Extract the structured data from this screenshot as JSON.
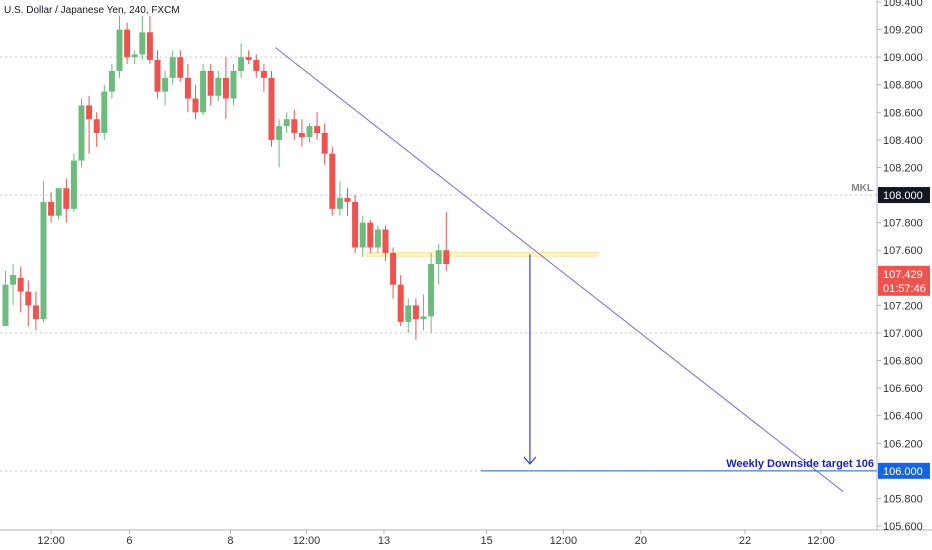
{
  "colors": {
    "up": "#6dbb7e",
    "down": "#ef5350",
    "trendline": "#6b6fd6",
    "arrow": "#3a3fbf",
    "target_line": "#1565e0",
    "grid": "#c8c8c8",
    "axis_text": "#333333",
    "current_price_bg": "#ef5350",
    "target_price_bg": "#1565e0",
    "mkl_bg": "#131722",
    "zone_fill": "#fff3c4"
  },
  "chart_data": {
    "type": "candlestick",
    "title": "U.S. Dollar / Japanese Yen, 240, FXCM",
    "y_axis": {
      "range": [
        105.6,
        109.4
      ],
      "ticks": [
        "109.400",
        "109.200",
        "109.000",
        "108.800",
        "108.600",
        "108.400",
        "108.200",
        "108.000",
        "107.800",
        "107.600",
        "107.400",
        "107.200",
        "107.000",
        "106.800",
        "106.600",
        "106.400",
        "106.200",
        "106.000",
        "105.800",
        "105.600"
      ],
      "gridlines_at": [
        109.0,
        108.0,
        107.0,
        106.0
      ]
    },
    "x_axis": {
      "ticks": [
        {
          "label": "12:00",
          "index": 6
        },
        {
          "label": "6",
          "index": 16.3
        },
        {
          "label": "8",
          "index": 29.6
        },
        {
          "label": "12:00",
          "index": 39.6
        },
        {
          "label": "13",
          "index": 49.8
        },
        {
          "label": "15",
          "index": 63.3
        },
        {
          "label": "12:00",
          "index": 73.4
        },
        {
          "label": "20",
          "index": 83.6
        },
        {
          "label": "22",
          "index": 97.3
        },
        {
          "label": "12:00",
          "index": 107.3
        }
      ]
    },
    "candles": [
      {
        "o": 107.05,
        "h": 107.45,
        "l": 107.05,
        "c": 107.35
      },
      {
        "o": 107.35,
        "h": 107.5,
        "l": 107.2,
        "c": 107.42
      },
      {
        "o": 107.4,
        "h": 107.48,
        "l": 107.15,
        "c": 107.3
      },
      {
        "o": 107.3,
        "h": 107.38,
        "l": 107.05,
        "c": 107.2
      },
      {
        "o": 107.2,
        "h": 107.3,
        "l": 107.02,
        "c": 107.1
      },
      {
        "o": 107.1,
        "h": 108.1,
        "l": 107.08,
        "c": 107.95
      },
      {
        "o": 107.95,
        "h": 108.02,
        "l": 107.8,
        "c": 107.85
      },
      {
        "o": 107.85,
        "h": 108.05,
        "l": 107.82,
        "c": 108.05
      },
      {
        "o": 108.05,
        "h": 108.12,
        "l": 107.8,
        "c": 107.9
      },
      {
        "o": 107.9,
        "h": 108.3,
        "l": 107.88,
        "c": 108.25
      },
      {
        "o": 108.25,
        "h": 108.7,
        "l": 108.2,
        "c": 108.65
      },
      {
        "o": 108.65,
        "h": 108.72,
        "l": 108.3,
        "c": 108.55
      },
      {
        "o": 108.55,
        "h": 108.6,
        "l": 108.35,
        "c": 108.45
      },
      {
        "o": 108.45,
        "h": 108.8,
        "l": 108.4,
        "c": 108.75
      },
      {
        "o": 108.75,
        "h": 108.95,
        "l": 108.7,
        "c": 108.9
      },
      {
        "o": 108.9,
        "h": 109.3,
        "l": 108.85,
        "c": 109.2
      },
      {
        "o": 109.2,
        "h": 109.25,
        "l": 108.95,
        "c": 109.0
      },
      {
        "o": 109.0,
        "h": 109.05,
        "l": 108.95,
        "c": 109.02
      },
      {
        "o": 109.02,
        "h": 109.3,
        "l": 108.98,
        "c": 109.18
      },
      {
        "o": 109.18,
        "h": 109.3,
        "l": 108.95,
        "c": 108.98
      },
      {
        "o": 108.98,
        "h": 109.05,
        "l": 108.7,
        "c": 108.75
      },
      {
        "o": 108.75,
        "h": 108.9,
        "l": 108.65,
        "c": 108.85
      },
      {
        "o": 108.85,
        "h": 109.05,
        "l": 108.8,
        "c": 109.0
      },
      {
        "o": 109.0,
        "h": 109.05,
        "l": 108.82,
        "c": 108.85
      },
      {
        "o": 108.85,
        "h": 108.95,
        "l": 108.6,
        "c": 108.7
      },
      {
        "o": 108.7,
        "h": 108.8,
        "l": 108.55,
        "c": 108.6
      },
      {
        "o": 108.6,
        "h": 108.95,
        "l": 108.58,
        "c": 108.9
      },
      {
        "o": 108.9,
        "h": 108.95,
        "l": 108.65,
        "c": 108.72
      },
      {
        "o": 108.72,
        "h": 108.9,
        "l": 108.68,
        "c": 108.85
      },
      {
        "o": 108.85,
        "h": 109.0,
        "l": 108.55,
        "c": 108.7
      },
      {
        "o": 108.7,
        "h": 108.95,
        "l": 108.65,
        "c": 108.9
      },
      {
        "o": 108.9,
        "h": 109.1,
        "l": 108.85,
        "c": 109.0
      },
      {
        "o": 109.0,
        "h": 109.05,
        "l": 108.95,
        "c": 108.98
      },
      {
        "o": 108.98,
        "h": 109.02,
        "l": 108.85,
        "c": 108.9
      },
      {
        "o": 108.9,
        "h": 108.95,
        "l": 108.75,
        "c": 108.85
      },
      {
        "o": 108.85,
        "h": 108.9,
        "l": 108.35,
        "c": 108.4
      },
      {
        "o": 108.4,
        "h": 108.55,
        "l": 108.2,
        "c": 108.5
      },
      {
        "o": 108.5,
        "h": 108.6,
        "l": 108.45,
        "c": 108.55
      },
      {
        "o": 108.55,
        "h": 108.62,
        "l": 108.4,
        "c": 108.45
      },
      {
        "o": 108.45,
        "h": 108.55,
        "l": 108.35,
        "c": 108.42
      },
      {
        "o": 108.42,
        "h": 108.52,
        "l": 108.38,
        "c": 108.5
      },
      {
        "o": 108.5,
        "h": 108.6,
        "l": 108.4,
        "c": 108.45
      },
      {
        "o": 108.45,
        "h": 108.52,
        "l": 108.22,
        "c": 108.3
      },
      {
        "o": 108.3,
        "h": 108.35,
        "l": 107.85,
        "c": 107.9
      },
      {
        "o": 107.9,
        "h": 108.1,
        "l": 107.85,
        "c": 107.98
      },
      {
        "o": 107.98,
        "h": 108.05,
        "l": 107.85,
        "c": 107.95
      },
      {
        "o": 107.95,
        "h": 108.0,
        "l": 107.58,
        "c": 107.62
      },
      {
        "o": 107.62,
        "h": 107.85,
        "l": 107.55,
        "c": 107.8
      },
      {
        "o": 107.8,
        "h": 107.82,
        "l": 107.58,
        "c": 107.62
      },
      {
        "o": 107.62,
        "h": 107.78,
        "l": 107.58,
        "c": 107.75
      },
      {
        "o": 107.75,
        "h": 107.78,
        "l": 107.52,
        "c": 107.58
      },
      {
        "o": 107.58,
        "h": 107.62,
        "l": 107.25,
        "c": 107.35
      },
      {
        "o": 107.35,
        "h": 107.42,
        "l": 107.05,
        "c": 107.08
      },
      {
        "o": 107.08,
        "h": 107.25,
        "l": 107.0,
        "c": 107.2
      },
      {
        "o": 107.2,
        "h": 107.25,
        "l": 106.95,
        "c": 107.1
      },
      {
        "o": 107.1,
        "h": 107.28,
        "l": 107.02,
        "c": 107.12
      },
      {
        "o": 107.12,
        "h": 107.58,
        "l": 107.0,
        "c": 107.5
      },
      {
        "o": 107.5,
        "h": 107.65,
        "l": 107.35,
        "c": 107.6
      },
      {
        "o": 107.6,
        "h": 107.88,
        "l": 107.45,
        "c": 107.5
      }
    ],
    "current_price": {
      "value": 107.429,
      "label": "107.429",
      "countdown": "01:57:46"
    },
    "mkl": {
      "label": "MKL",
      "value": 108.0,
      "price_label": "108.000"
    },
    "target": {
      "value": 106.0,
      "price_label": "106.000",
      "text": "Weekly Downside target 106"
    },
    "trendline": {
      "from": {
        "index": 35.5,
        "price": 109.07
      },
      "to": {
        "index": 110.2,
        "price": 105.85
      }
    },
    "zone": {
      "from_index": 47.5,
      "to_index": 78.0,
      "price_top": 107.585,
      "price_bottom": 107.555
    },
    "arrow": {
      "index": 69.0,
      "from_price": 107.57,
      "to_price": 106.05
    }
  }
}
